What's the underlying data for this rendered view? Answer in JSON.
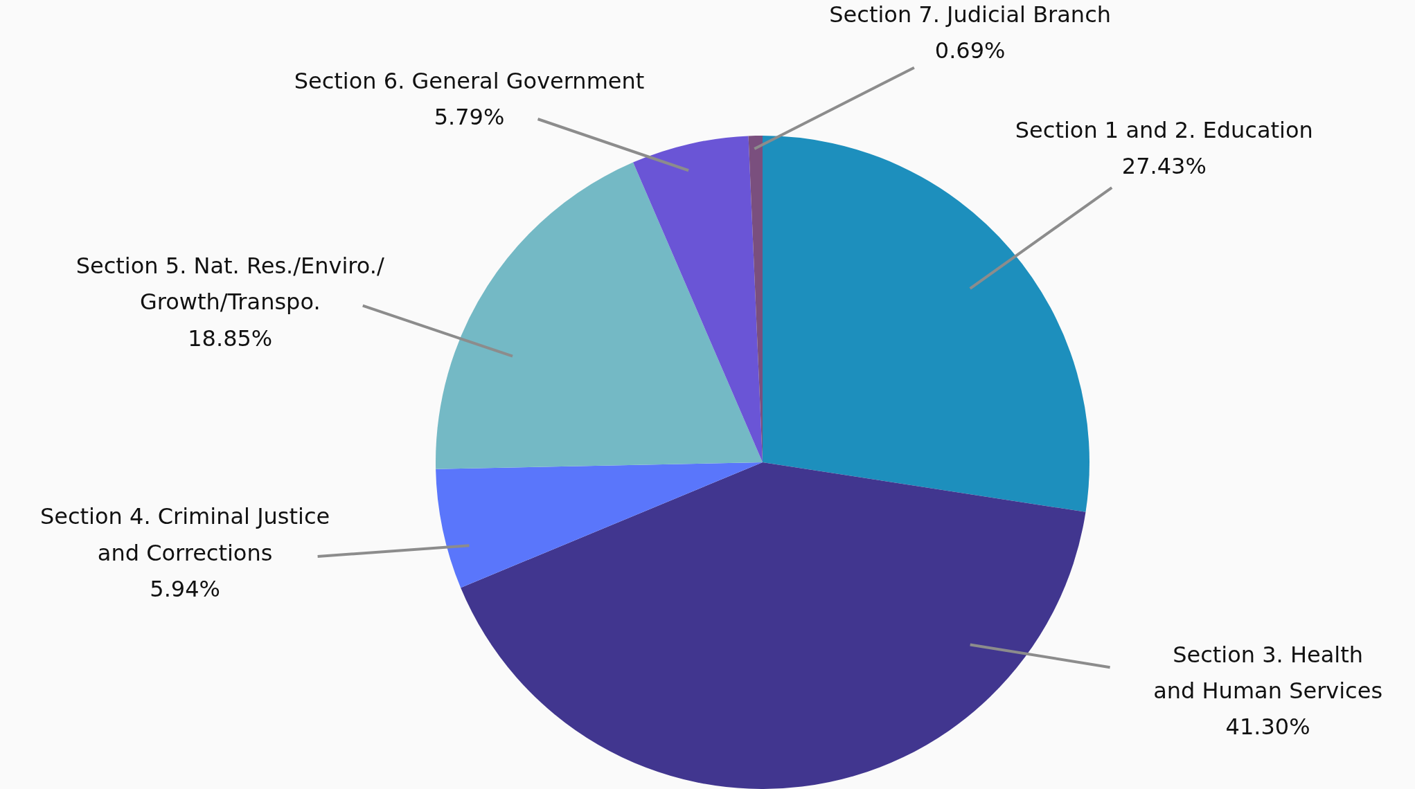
{
  "chart_data": {
    "type": "pie",
    "categories": [
      "Section 1 and 2. Education",
      "Section 3. Health and Human Services",
      "Section 4. Criminal Justice and Corrections",
      "Section 5. Nat. Res./Enviro./Growth/Transpo.",
      "Section 6. General Government",
      "Section 7. Judicial Branch"
    ],
    "values": [
      27.43,
      41.3,
      5.94,
      18.85,
      5.79,
      0.69
    ],
    "value_labels": [
      "27.43%",
      "41.30%",
      "5.94%",
      "18.85%",
      "5.79%",
      "0.69%"
    ],
    "colors": [
      "#1d8fbd",
      "#41368f",
      "#5a76fb",
      "#74b9c5",
      "#6a55d6",
      "#7a4f7e"
    ],
    "legend": false
  }
}
